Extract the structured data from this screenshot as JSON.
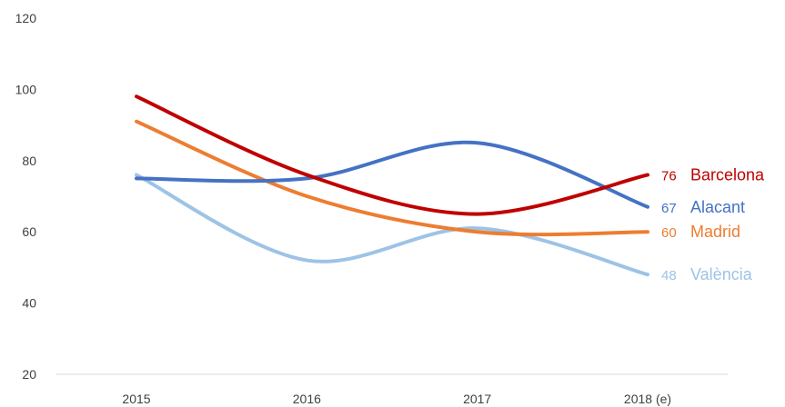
{
  "chart_data": {
    "type": "line",
    "categories": [
      "2015",
      "2016",
      "2017",
      "2018 (e)"
    ],
    "yticks": [
      20,
      40,
      60,
      80,
      100,
      120
    ],
    "ylim": [
      20,
      120
    ],
    "grid": false,
    "smooth": true,
    "series": [
      {
        "name": "Barcelona",
        "values": [
          98,
          76,
          65,
          76
        ],
        "color": "#c00000",
        "end_label": "76"
      },
      {
        "name": "Alacant",
        "values": [
          75,
          75,
          85,
          67
        ],
        "color": "#4472c4",
        "end_label": "67"
      },
      {
        "name": "Madrid",
        "values": [
          91,
          70,
          60,
          60
        ],
        "color": "#ed7d31",
        "end_label": "60"
      },
      {
        "name": "València",
        "values": [
          76,
          52,
          61,
          48
        ],
        "color": "#9dc3e6",
        "end_label": "48"
      }
    ]
  }
}
